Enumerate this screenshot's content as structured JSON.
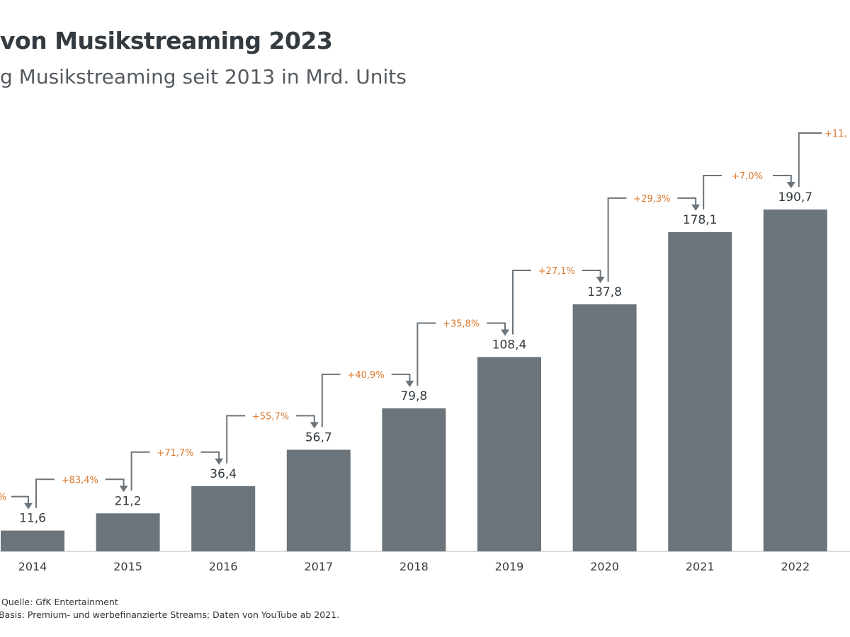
{
  "title": "von Musikstreaming 2023",
  "subtitle": "g Musikstreaming seit 2013 in Mrd. Units",
  "chart_data": {
    "type": "bar",
    "categories": [
      "2014",
      "2015",
      "2016",
      "2017",
      "2018",
      "2019",
      "2020",
      "2021",
      "2022"
    ],
    "values": [
      11.6,
      21.2,
      36.4,
      56.7,
      79.8,
      108.4,
      137.8,
      178.1,
      190.7
    ],
    "value_labels": [
      "11,6",
      "21,2",
      "36,4",
      "56,7",
      "79,8",
      "108,4",
      "137,8",
      "178,1",
      "190,7"
    ],
    "growth_labels": [
      "+83,4%",
      "+71,7%",
      "+55,7%",
      "+40,9%",
      "+35,8%",
      "+27,1%",
      "+29,3%",
      "+7,0%"
    ],
    "edge_growth_left": "%",
    "edge_growth_right": "+11,",
    "ylim": [
      0,
      200
    ],
    "grid": false,
    "colors": {
      "bar": "#6b747b",
      "growth": "#d9782d",
      "connector": "#6b747b",
      "text": "#333b40"
    }
  },
  "footer": {
    "source": "Quelle: GfK Entertainment",
    "basis": "Basis: Premium- und werbefinanzierte Streams; Daten von YouTube ab 2021."
  }
}
